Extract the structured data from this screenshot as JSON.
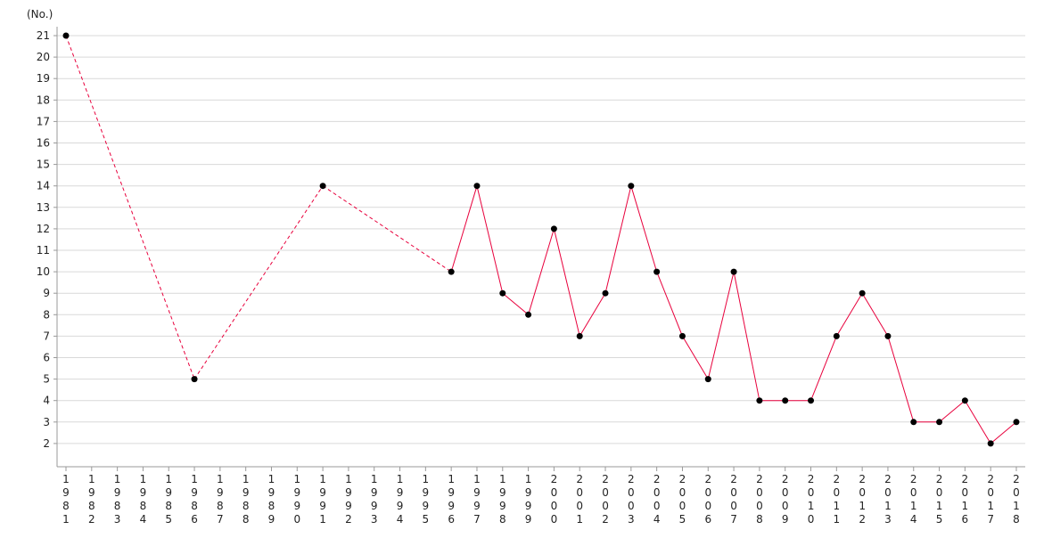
{
  "chart_data": {
    "type": "line",
    "title": "",
    "ylabel": "(No.)",
    "xlabel": "",
    "ylim": [
      1,
      21.5
    ],
    "yticks": [
      2,
      3,
      4,
      5,
      6,
      7,
      8,
      9,
      10,
      11,
      12,
      13,
      14,
      15,
      16,
      17,
      18,
      19,
      20,
      21
    ],
    "categories": [
      1981,
      1982,
      1983,
      1984,
      1985,
      1986,
      1987,
      1988,
      1989,
      1990,
      1991,
      1992,
      1993,
      1994,
      1995,
      1996,
      1997,
      1998,
      1999,
      2000,
      2001,
      2002,
      2003,
      2004,
      2005,
      2006,
      2007,
      2008,
      2009,
      2010,
      2011,
      2012,
      2013,
      2014,
      2015,
      2016,
      2017,
      2018
    ],
    "grid": "horizontal",
    "series": [
      {
        "points": [
          [
            1981,
            21
          ],
          [
            1986,
            5
          ],
          [
            1991,
            14
          ],
          [
            1996,
            10
          ],
          [
            1997,
            14
          ],
          [
            1998,
            9
          ],
          [
            1999,
            8
          ],
          [
            2000,
            12
          ],
          [
            2001,
            7
          ],
          [
            2002,
            9
          ],
          [
            2003,
            14
          ],
          [
            2004,
            10
          ],
          [
            2005,
            7
          ],
          [
            2006,
            5
          ],
          [
            2007,
            10
          ],
          [
            2008,
            4
          ],
          [
            2009,
            4
          ],
          [
            2010,
            4
          ],
          [
            2011,
            7
          ],
          [
            2012,
            9
          ],
          [
            2013,
            7
          ],
          [
            2014,
            3
          ],
          [
            2015,
            3
          ],
          [
            2016,
            4
          ],
          [
            2017,
            2
          ],
          [
            2018,
            3
          ]
        ],
        "dashed_until": 1996,
        "line_color": "#e8003c",
        "marker_color": "#000000"
      }
    ]
  }
}
